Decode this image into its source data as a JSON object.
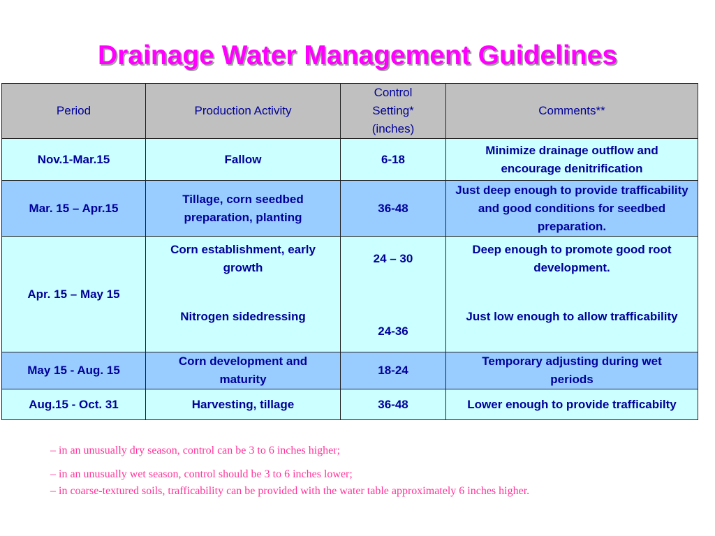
{
  "title": "Drainage Water Management Guidelines",
  "table": {
    "headers": {
      "period": "Period",
      "activity": "Production Activity",
      "control": "Control Setting* (inches)",
      "comments": "Comments**"
    },
    "rows": [
      {
        "period": "Nov.1-Mar.15",
        "activity": "Fallow",
        "control": "6-18",
        "comments": "Minimize drainage outflow and encourage denitrification"
      },
      {
        "period": "Mar. 15 – Apr.15",
        "activity": "Tillage, corn seedbed preparation, planting",
        "control": "36-48",
        "comments": "Just deep enough to provide trafficability and good conditions for seedbed preparation."
      },
      {
        "period": "Apr. 15 – May 15",
        "activity_1": "Corn establishment, early growth",
        "activity_2": "Nitrogen sidedressing",
        "control_1": "24 – 30",
        "control_2": "24-36",
        "comments_1": "Deep enough to promote good root development.",
        "comments_2": "Just low enough to allow trafficability"
      },
      {
        "period": "May 15 - Aug. 15",
        "activity": "Corn development and maturity",
        "control": "18-24",
        "comments": "Temporary adjusting during wet periods"
      },
      {
        "period": "Aug.15 - Oct. 31",
        "activity": "Harvesting, tillage",
        "control": "36-48",
        "comments": "Lower enough to provide trafficabilty"
      }
    ]
  },
  "notes": [
    "– in an unusually dry season, control can be 3 to 6 inches higher;",
    "– in an unusually wet season, control should be 3 to 6 inches lower;",
    "– in coarse-textured soils, trafficability can be provided with the water table approximately 6 inches higher."
  ]
}
